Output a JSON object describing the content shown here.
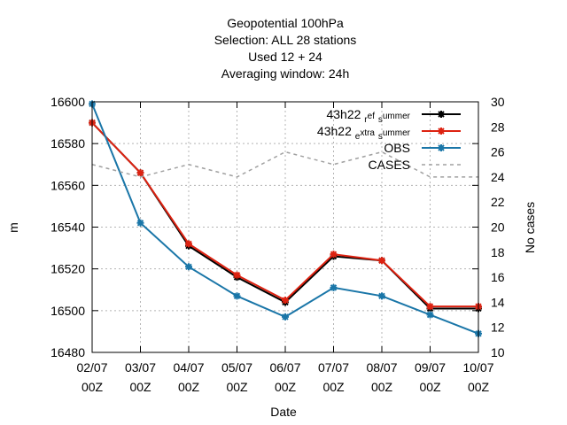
{
  "chart_data": {
    "type": "line",
    "title_lines": [
      "Geopotential 100hPa",
      "Selection: ALL      28 stations",
      "Used  12  + 24",
      "Averaging window: 24h"
    ],
    "xlabel": "Date",
    "ylabel": "m",
    "y2label": "No cases",
    "categories": [
      {
        "date": "02/07",
        "time": "00Z"
      },
      {
        "date": "03/07",
        "time": "00Z"
      },
      {
        "date": "04/07",
        "time": "00Z"
      },
      {
        "date": "05/07",
        "time": "00Z"
      },
      {
        "date": "06/07",
        "time": "00Z"
      },
      {
        "date": "07/07",
        "time": "00Z"
      },
      {
        "date": "08/07",
        "time": "00Z"
      },
      {
        "date": "09/07",
        "time": "00Z"
      },
      {
        "date": "10/07",
        "time": "00Z"
      }
    ],
    "ylim": [
      16480,
      16600
    ],
    "yticks": [
      16480,
      16500,
      16520,
      16540,
      16560,
      16580,
      16600
    ],
    "y2lim": [
      10,
      30
    ],
    "y2ticks": [
      10,
      12,
      14,
      16,
      18,
      20,
      22,
      24,
      26,
      28,
      30
    ],
    "grid": true,
    "legend_position": "top-right",
    "series": [
      {
        "name_main": "43h22",
        "name_sub1": "r",
        "name_mid": "ef",
        "name_sub2": "s",
        "name_end": "ummer",
        "color": "#000000",
        "axis": "y",
        "style": "solid-marker",
        "values": [
          16590,
          16566,
          16531,
          16516,
          16504,
          16526,
          16524,
          16501,
          16501
        ]
      },
      {
        "name_main": "43h22",
        "name_sub1": "e",
        "name_mid": "xtra",
        "name_sub2": "s",
        "name_end": "ummer",
        "color": "#dd2211",
        "axis": "y",
        "style": "solid-marker",
        "values": [
          16590,
          16566,
          16532,
          16517,
          16505,
          16527,
          16524,
          16502,
          16502
        ]
      },
      {
        "name_main": "OBS",
        "color": "#1a76a8",
        "axis": "y",
        "style": "solid-marker",
        "values": [
          16599,
          16542,
          16521,
          16507,
          16497,
          16511,
          16507,
          16498,
          16489
        ]
      },
      {
        "name_main": "CASES",
        "color": "#a0a0a0",
        "axis": "y2",
        "style": "dashed",
        "values": [
          25,
          24,
          25,
          24,
          26,
          25,
          26,
          24,
          24
        ]
      }
    ]
  }
}
